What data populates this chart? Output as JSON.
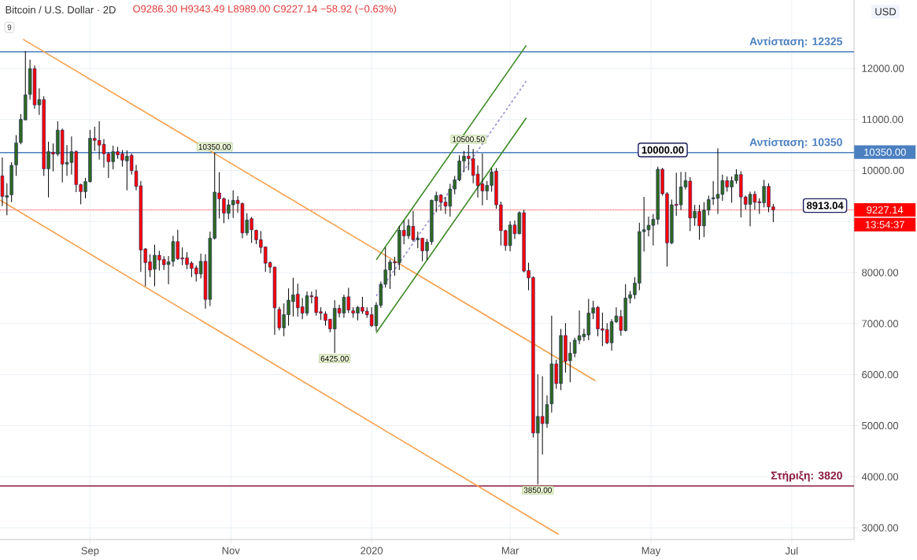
{
  "chart_data": {
    "type": "candlestick",
    "title": "Bitcoin / U.S. Dollar · 2D",
    "x": [
      "2019-07-25",
      "2019-07-27",
      "2019-07-29",
      "2019-07-31",
      "2019-08-02",
      "2019-08-04",
      "2019-08-06",
      "2019-08-08",
      "2019-08-10",
      "2019-08-12",
      "2019-08-14",
      "2019-08-16",
      "2019-08-18",
      "2019-08-20",
      "2019-08-22",
      "2019-08-24",
      "2019-08-26",
      "2019-08-28",
      "2019-08-30",
      "2019-09-01",
      "2019-09-03",
      "2019-09-05",
      "2019-09-07",
      "2019-09-09",
      "2019-09-11",
      "2019-09-13",
      "2019-09-15",
      "2019-09-17",
      "2019-09-19",
      "2019-09-21",
      "2019-09-23",
      "2019-09-25",
      "2019-09-27",
      "2019-09-29",
      "2019-10-01",
      "2019-10-03",
      "2019-10-05",
      "2019-10-07",
      "2019-10-09",
      "2019-10-11",
      "2019-10-13",
      "2019-10-15",
      "2019-10-17",
      "2019-10-19",
      "2019-10-21",
      "2019-10-23",
      "2019-10-25",
      "2019-10-27",
      "2019-10-29",
      "2019-10-31",
      "2019-11-02",
      "2019-11-04",
      "2019-11-06",
      "2019-11-08",
      "2019-11-10",
      "2019-11-12",
      "2019-11-14",
      "2019-11-16",
      "2019-11-18",
      "2019-11-20",
      "2019-11-22",
      "2019-11-24",
      "2019-11-26",
      "2019-11-28",
      "2019-11-30",
      "2019-12-02",
      "2019-12-04",
      "2019-12-06",
      "2019-12-08",
      "2019-12-10",
      "2019-12-12",
      "2019-12-14",
      "2019-12-16",
      "2019-12-18",
      "2019-12-20",
      "2019-12-22",
      "2019-12-24",
      "2019-12-26",
      "2019-12-28",
      "2019-12-30",
      "2020-01-01",
      "2020-01-03",
      "2020-01-05",
      "2020-01-07",
      "2020-01-09",
      "2020-01-11",
      "2020-01-13",
      "2020-01-15",
      "2020-01-17",
      "2020-01-19",
      "2020-01-21",
      "2020-01-23",
      "2020-01-25",
      "2020-01-27",
      "2020-01-29",
      "2020-01-31",
      "2020-02-02",
      "2020-02-04",
      "2020-02-06",
      "2020-02-08",
      "2020-02-10",
      "2020-02-12",
      "2020-02-14",
      "2020-02-16",
      "2020-02-18",
      "2020-02-20",
      "2020-02-22",
      "2020-02-24",
      "2020-02-26",
      "2020-02-28",
      "2020-03-01",
      "2020-03-03",
      "2020-03-05",
      "2020-03-07",
      "2020-03-09",
      "2020-03-11",
      "2020-03-13",
      "2020-03-15",
      "2020-03-17",
      "2020-03-19",
      "2020-03-21",
      "2020-03-23",
      "2020-03-25",
      "2020-03-27",
      "2020-03-29",
      "2020-03-31",
      "2020-04-02",
      "2020-04-04",
      "2020-04-06",
      "2020-04-08",
      "2020-04-10",
      "2020-04-12",
      "2020-04-14",
      "2020-04-16",
      "2020-04-18",
      "2020-04-20",
      "2020-04-22",
      "2020-04-24",
      "2020-04-26",
      "2020-04-28",
      "2020-04-30",
      "2020-05-02",
      "2020-05-04",
      "2020-05-06",
      "2020-05-08",
      "2020-05-10",
      "2020-05-12",
      "2020-05-14",
      "2020-05-16",
      "2020-05-18",
      "2020-05-20",
      "2020-05-22",
      "2020-05-24",
      "2020-05-26",
      "2020-05-28",
      "2020-05-30",
      "2020-06-01",
      "2020-06-03",
      "2020-06-05",
      "2020-06-07",
      "2020-06-09",
      "2020-06-11",
      "2020-06-13",
      "2020-06-15",
      "2020-06-17",
      "2020-06-19",
      "2020-06-21",
      "2020-06-23"
    ],
    "ohlc": [
      [
        9894,
        10254,
        9302,
        9492
      ],
      [
        9477,
        9750,
        9122,
        9508
      ],
      [
        9523,
        10162,
        9379,
        10100
      ],
      [
        10110,
        10692,
        9894,
        10538
      ],
      [
        10548,
        11104,
        10512,
        11001
      ],
      [
        10991,
        12340,
        10986,
        11480
      ],
      [
        11491,
        12170,
        11388,
        11995
      ],
      [
        11995,
        12057,
        11207,
        11285
      ],
      [
        11285,
        11609,
        11089,
        11388
      ],
      [
        11388,
        11454,
        9894,
        10033
      ],
      [
        10033,
        10564,
        9472,
        10368
      ],
      [
        10358,
        10528,
        9982,
        10321
      ],
      [
        10321,
        10965,
        10280,
        10790
      ],
      [
        10790,
        10821,
        9765,
        10126
      ],
      [
        10126,
        10497,
        9894,
        10157
      ],
      [
        10157,
        10667,
        9920,
        10368
      ],
      [
        10368,
        10394,
        9575,
        9724
      ],
      [
        9724,
        9740,
        9338,
        9585
      ],
      [
        9585,
        9853,
        9456,
        9781
      ],
      [
        9781,
        10795,
        9765,
        10630
      ],
      [
        10630,
        10857,
        10383,
        10589
      ],
      [
        10589,
        10965,
        10213,
        10497
      ],
      [
        10512,
        10615,
        10059,
        10327
      ],
      [
        10327,
        10360,
        9853,
        10172
      ],
      [
        10172,
        10486,
        10023,
        10368
      ],
      [
        10368,
        10461,
        10229,
        10306
      ],
      [
        10327,
        10399,
        10074,
        10203
      ],
      [
        10188,
        10394,
        9611,
        10280
      ],
      [
        10296,
        10332,
        9920,
        9997
      ],
      [
        9987,
        10110,
        9611,
        9688
      ],
      [
        9698,
        9791,
        8014,
        8442
      ],
      [
        8462,
        8480,
        7731,
        8195
      ],
      [
        8210,
        8359,
        7911,
        8050
      ],
      [
        8066,
        8545,
        7731,
        8339
      ],
      [
        8339,
        8426,
        8040,
        8246
      ],
      [
        8256,
        8320,
        8050,
        8153
      ],
      [
        8158,
        8323,
        7772,
        8210
      ],
      [
        8220,
        8720,
        8117,
        8606
      ],
      [
        8606,
        8838,
        8246,
        8272
      ],
      [
        8287,
        8493,
        8143,
        8267
      ],
      [
        8287,
        8400,
        8066,
        8158
      ],
      [
        8184,
        8220,
        7911,
        8081
      ],
      [
        8092,
        8140,
        7824,
        7973
      ],
      [
        7973,
        8370,
        7885,
        8220
      ],
      [
        8220,
        8359,
        7293,
        7474
      ],
      [
        7474,
        8802,
        7345,
        8673
      ],
      [
        8673,
        10350,
        8648,
        9575
      ],
      [
        9559,
        9966,
        9060,
        9446
      ],
      [
        9446,
        9470,
        8967,
        9163
      ],
      [
        9163,
        9430,
        9044,
        9327
      ],
      [
        9327,
        9611,
        9070,
        9415
      ],
      [
        9415,
        9497,
        9173,
        9353
      ],
      [
        9353,
        9370,
        8673,
        8776
      ],
      [
        8776,
        9163,
        8725,
        9029
      ],
      [
        9055,
        9091,
        8581,
        8838
      ],
      [
        8828,
        8840,
        8555,
        8643
      ],
      [
        8643,
        8812,
        8375,
        8493
      ],
      [
        8503,
        8510,
        8014,
        8184
      ],
      [
        8194,
        8220,
        7988,
        8107
      ],
      [
        8107,
        8117,
        6778,
        7309
      ],
      [
        7278,
        7330,
        6866,
        6917
      ],
      [
        6917,
        7396,
        6753,
        7175
      ],
      [
        7175,
        7690,
        6959,
        7458
      ],
      [
        7432,
        7896,
        7139,
        7561
      ],
      [
        7577,
        7783,
        7139,
        7309
      ],
      [
        7329,
        7500,
        7087,
        7206
      ],
      [
        7206,
        7628,
        7154,
        7546
      ],
      [
        7546,
        7628,
        7396,
        7525
      ],
      [
        7525,
        7669,
        7154,
        7216
      ],
      [
        7232,
        7320,
        7072,
        7206
      ],
      [
        7190,
        7240,
        6959,
        7062
      ],
      [
        7087,
        7090,
        6830,
        6897
      ],
      [
        6897,
        7458,
        6425,
        7298
      ],
      [
        7298,
        7370,
        7123,
        7206
      ],
      [
        7206,
        7566,
        7113,
        7515
      ],
      [
        7525,
        7700,
        7206,
        7267
      ],
      [
        7252,
        7320,
        7113,
        7206
      ],
      [
        7206,
        7345,
        7062,
        7319
      ],
      [
        7319,
        7525,
        7190,
        7242
      ],
      [
        7242,
        7319,
        7113,
        7175
      ],
      [
        7175,
        7319,
        6933,
        6959
      ],
      [
        6959,
        7420,
        6856,
        7360
      ],
      [
        7360,
        7824,
        7309,
        7772
      ],
      [
        7772,
        8493,
        7705,
        8050
      ],
      [
        8050,
        8256,
        7679,
        8205
      ],
      [
        8210,
        8308,
        7937,
        8189
      ],
      [
        8189,
        8915,
        8050,
        8828
      ],
      [
        8828,
        9019,
        8555,
        8720
      ],
      [
        8720,
        9044,
        8658,
        8915
      ],
      [
        8905,
        9209,
        8606,
        8643
      ],
      [
        8643,
        8802,
        8478,
        8673
      ],
      [
        8673,
        8680,
        8220,
        8426
      ],
      [
        8426,
        8658,
        8246,
        8596
      ],
      [
        8606,
        9430,
        8545,
        9415
      ],
      [
        9405,
        9585,
        9183,
        9508
      ],
      [
        9518,
        9533,
        9214,
        9379
      ],
      [
        9379,
        9480,
        9147,
        9301
      ],
      [
        9301,
        9739,
        9096,
        9636
      ],
      [
        9636,
        9894,
        9533,
        9816
      ],
      [
        9816,
        10295,
        9790,
        10187
      ],
      [
        10187,
        10383,
        9971,
        10280
      ],
      [
        10280,
        10500.5,
        10007,
        10233
      ],
      [
        10233,
        10419,
        9749,
        9904
      ],
      [
        9930,
        10100,
        9471,
        9703
      ],
      [
        9739,
        10331,
        9317,
        9600
      ],
      [
        9600,
        9790,
        9420,
        9708
      ],
      [
        9708,
        10038,
        9585,
        9971
      ],
      [
        9986,
        10048,
        9250,
        9327
      ],
      [
        9327,
        9390,
        8529,
        8822
      ],
      [
        8822,
        8840,
        8426,
        8529
      ],
      [
        8529,
        9008,
        8415,
        8931
      ],
      [
        8931,
        9020,
        8658,
        8761
      ],
      [
        8761,
        9198,
        8750,
        9173
      ],
      [
        9173,
        9234,
        8003,
        8029
      ],
      [
        8039,
        8194,
        7653,
        7895
      ],
      [
        7900,
        7926,
        4769,
        4857
      ],
      [
        4857,
        6005,
        3850,
        5181
      ],
      [
        5181,
        5969,
        4435,
        5042
      ],
      [
        5042,
        5593,
        4960,
        5413
      ],
      [
        5429,
        7154,
        5258,
        6211
      ],
      [
        6211,
        6290,
        5722,
        5825
      ],
      [
        5825,
        6896,
        5696,
        6767
      ],
      [
        6767,
        7009,
        6041,
        6263
      ],
      [
        6273,
        6639,
        5851,
        6417
      ],
      [
        6417,
        6725,
        6340,
        6675
      ],
      [
        6675,
        7257,
        6598,
        6763
      ],
      [
        6742,
        6900,
        6660,
        6794
      ],
      [
        6778,
        7484,
        6675,
        7206
      ],
      [
        7206,
        7448,
        7087,
        7309
      ],
      [
        7319,
        7345,
        6753,
        6897
      ],
      [
        6897,
        7216,
        6557,
        6871
      ],
      [
        6881,
        7010,
        6598,
        6624
      ],
      [
        6624,
        7087,
        6469,
        7036
      ],
      [
        7036,
        7319,
        7010,
        7149
      ],
      [
        7139,
        7268,
        6763,
        6866
      ],
      [
        6866,
        7772,
        6845,
        7499
      ],
      [
        7499,
        7640,
        7396,
        7566
      ],
      [
        7566,
        7911,
        7484,
        7793
      ],
      [
        7793,
        8977,
        7654,
        8802
      ],
      [
        8802,
        9482,
        8411,
        8838
      ],
      [
        8838,
        9096,
        8710,
        8926
      ],
      [
        8926,
        9147,
        8529,
        9044
      ],
      [
        9044,
        10074,
        8941,
        10023
      ],
      [
        10023,
        10050,
        9508,
        9544
      ],
      [
        9544,
        9575,
        8117,
        8581
      ],
      [
        8581,
        9431,
        8555,
        9327
      ],
      [
        9338,
        9956,
        9111,
        9317
      ],
      [
        9327,
        9971,
        9225,
        9678
      ],
      [
        9678,
        9971,
        9627,
        9801
      ],
      [
        9791,
        9869,
        8813,
        9070
      ],
      [
        9070,
        9327,
        8915,
        9199
      ],
      [
        9199,
        9327,
        8643,
        8915
      ],
      [
        8915,
        9379,
        8694,
        9224
      ],
      [
        9224,
        9507,
        9121,
        9430
      ],
      [
        9445,
        9791,
        9327,
        9466
      ],
      [
        9456,
        10434,
        9147,
        9533
      ],
      [
        9533,
        9919,
        9405,
        9801
      ],
      [
        9801,
        9883,
        9585,
        9677
      ],
      [
        9677,
        9883,
        9368,
        9801
      ],
      [
        9801,
        10022,
        9739,
        9919
      ],
      [
        9919,
        9986,
        9080,
        9481
      ],
      [
        9481,
        9507,
        9234,
        9337
      ],
      [
        9337,
        9584,
        8905,
        9533
      ],
      [
        9533,
        9595,
        9234,
        9378
      ],
      [
        9389,
        9456,
        9147,
        9368
      ],
      [
        9368,
        9816,
        9276,
        9688
      ],
      [
        9688,
        9749,
        9183,
        9286
      ],
      [
        9286.3,
        9343.49,
        8989.0,
        9227.14
      ]
    ],
    "series": [
      {
        "type": "line",
        "x": [
          "2019-08-03",
          "2020-04-07"
        ],
        "values": [
          12570,
          5880
        ],
        "color": "#f7a04c"
      },
      {
        "type": "line",
        "x": [
          "2019-07-24",
          "2020-03-22"
        ],
        "values": [
          9420,
          2870
        ],
        "color": "#f7a04c"
      },
      {
        "type": "line",
        "x": [
          "2020-01-03",
          "2020-03-08"
        ],
        "values": [
          6820,
          11030
        ],
        "color": "#3a8a24"
      },
      {
        "type": "line",
        "x": [
          "2020-01-03",
          "2020-03-08"
        ],
        "values": [
          8250,
          12450
        ],
        "color": "#3a8a24"
      },
      {
        "type": "line",
        "x": [
          "2020-01-03",
          "2020-03-08"
        ],
        "values": [
          7540,
          11750
        ],
        "color": "#9c8fd0",
        "line_style": "dashed"
      }
    ],
    "xlim": [
      "2019-07-24",
      "2020-07-28"
    ],
    "xticks": [
      {
        "value": "2019-09-01",
        "label": "Sep"
      },
      {
        "value": "2019-11-01",
        "label": "Nov"
      },
      {
        "value": "2020-01-01",
        "label": "2020"
      },
      {
        "value": "2020-03-01",
        "label": "Mar"
      },
      {
        "value": "2020-05-01",
        "label": "May"
      },
      {
        "value": "2020-07-01",
        "label": "Jul"
      }
    ],
    "ylim": [
      2770,
      13340
    ],
    "yticks": [
      {
        "value": 3000,
        "label": "3000.00"
      },
      {
        "value": 4000,
        "label": "4000.00"
      },
      {
        "value": 5000,
        "label": "5000.00"
      },
      {
        "value": 6000,
        "label": "6000.00"
      },
      {
        "value": 7000,
        "label": "7000.00"
      },
      {
        "value": 8000,
        "label": "8000.00"
      },
      {
        "value": 9000,
        "label": null
      },
      {
        "value": 10000,
        "label": "10000.00"
      },
      {
        "value": 11000,
        "label": "11000.00"
      },
      {
        "value": 12000,
        "label": "12000.00"
      }
    ],
    "grid": true,
    "ref_lines": [
      {
        "axis": "y",
        "value": 12325,
        "label": "Αντίσταση: 12325",
        "color": "#4a7fc0"
      },
      {
        "axis": "y",
        "value": 10350,
        "label": "Αντίσταση: 10350",
        "color": "#4a7fc0"
      },
      {
        "axis": "y",
        "value": 3820,
        "label": "Στήριξη: 3820",
        "color": "#8c1a40"
      },
      {
        "axis": "y",
        "value": 9227.14,
        "label": "9227.14",
        "color": "#ff0000",
        "line_style": "dotted"
      }
    ],
    "annotations": [
      "O9286.30 H9343.49 L8989.00 C9227.14 −58.92 (−0.63%)",
      "9",
      "USD",
      "13:54:37",
      {
        "text": "10350.00",
        "x": "2019-10-25",
        "y": 10350
      },
      {
        "text": "10500.50",
        "x": "2020-02-12",
        "y": 10500.5
      },
      {
        "text": "6425.00",
        "x": "2019-12-16",
        "y": 6425
      },
      {
        "text": "3850.00",
        "x": "2020-03-13",
        "y": 3850
      },
      "10000.00",
      "8913.04",
      "10350.00"
    ]
  }
}
